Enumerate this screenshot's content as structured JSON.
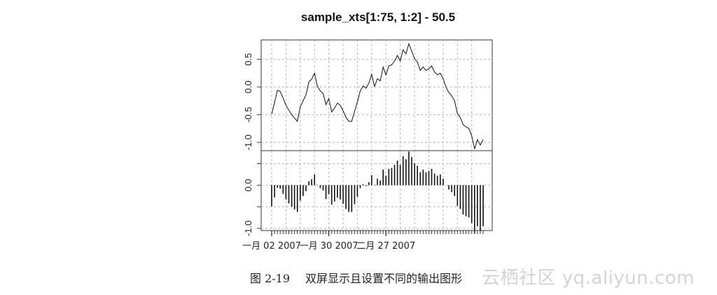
{
  "chart_data": {
    "type": "line",
    "title": "sample_xts[1:75, 1:2] - 50.5",
    "x_range": [
      "2007-01-02",
      "2007-04-16"
    ],
    "x_tick_labels": [
      "一月 02 2007",
      "一月 30 2007",
      "二月 27 2007"
    ],
    "grid": true,
    "panels": [
      {
        "name": "",
        "type": "line",
        "ylim": [
          -1.15,
          0.85
        ],
        "y_ticks": [
          -1.0,
          -0.5,
          0.0,
          0.5
        ],
        "y_tick_labels": [
          "-1.0",
          "-0.5",
          "0.0",
          "0.5"
        ]
      },
      {
        "name": "",
        "type": "histogram-bars",
        "ylim": [
          -1.05,
          0.8
        ],
        "y_ticks": [
          -1.0,
          0.0
        ],
        "y_tick_labels": [
          "-1.0",
          "0.0"
        ]
      }
    ],
    "values": [
      -0.49,
      -0.28,
      -0.06,
      -0.08,
      -0.2,
      -0.33,
      -0.42,
      -0.5,
      -0.56,
      -0.62,
      -0.36,
      -0.25,
      -0.14,
      0.09,
      0.14,
      0.25,
      0.01,
      -0.07,
      -0.12,
      -0.32,
      -0.21,
      -0.45,
      -0.38,
      -0.29,
      -0.33,
      -0.43,
      -0.55,
      -0.62,
      -0.62,
      -0.44,
      -0.27,
      -0.07,
      0.02,
      -0.02,
      0.07,
      0.23,
      0.01,
      0.15,
      0.11,
      0.36,
      0.22,
      0.38,
      0.4,
      0.47,
      0.57,
      0.47,
      0.67,
      0.6,
      0.78,
      0.65,
      0.51,
      0.45,
      0.3,
      0.36,
      0.3,
      0.33,
      0.38,
      0.27,
      0.22,
      0.25,
      0.15,
      0.0,
      -0.1,
      -0.16,
      -0.25,
      -0.48,
      -0.55,
      -0.68,
      -0.72,
      -0.75,
      -0.88,
      -1.12,
      -0.95,
      -1.05,
      -0.95
    ]
  },
  "caption": {
    "number": "图 2-19",
    "text": "双屏显示且设置不同的输出图形"
  },
  "watermark": "云栖社区 yq.aliyun.com"
}
